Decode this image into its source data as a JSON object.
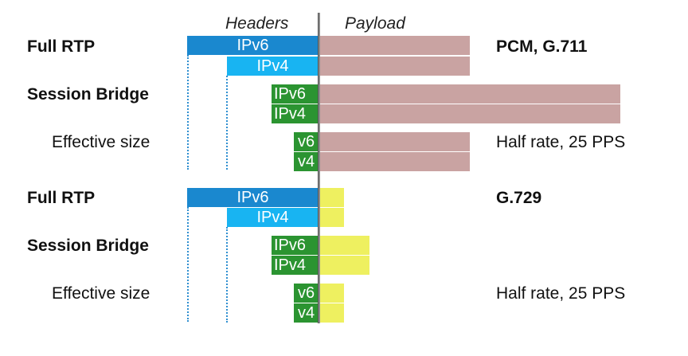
{
  "headers": {
    "headers_label": "Headers",
    "payload_label": "Payload"
  },
  "colors": {
    "ipv6_full": "#1a88cf",
    "ipv4_full": "#18b4f2",
    "session": "#2b9431",
    "payload_g711": "#c9a3a2",
    "payload_g729": "#eef060",
    "center_line": "#8a8a8a",
    "dotted": "#2f8fd0"
  },
  "section1": {
    "full_rtp": {
      "label": "Full RTP",
      "ipv6": "IPv6",
      "ipv4": "IPv4",
      "note": "PCM, G.711"
    },
    "session_bridge": {
      "label": "Session Bridge",
      "ipv6": "IPv6",
      "ipv4": "IPv4"
    },
    "effective": {
      "label": "Effective size",
      "v6": "v6",
      "v4": "v4",
      "note": "Half rate, 25 PPS"
    }
  },
  "section2": {
    "full_rtp": {
      "label": "Full RTP",
      "ipv6": "IPv6",
      "ipv4": "IPv4",
      "note": "G.729"
    },
    "session_bridge": {
      "label": "Session Bridge",
      "ipv6": "IPv6",
      "ipv4": "IPv4"
    },
    "effective": {
      "label": "Effective size",
      "v6": "v6",
      "v4": "v4",
      "note": "Half rate, 25 PPS"
    }
  }
}
